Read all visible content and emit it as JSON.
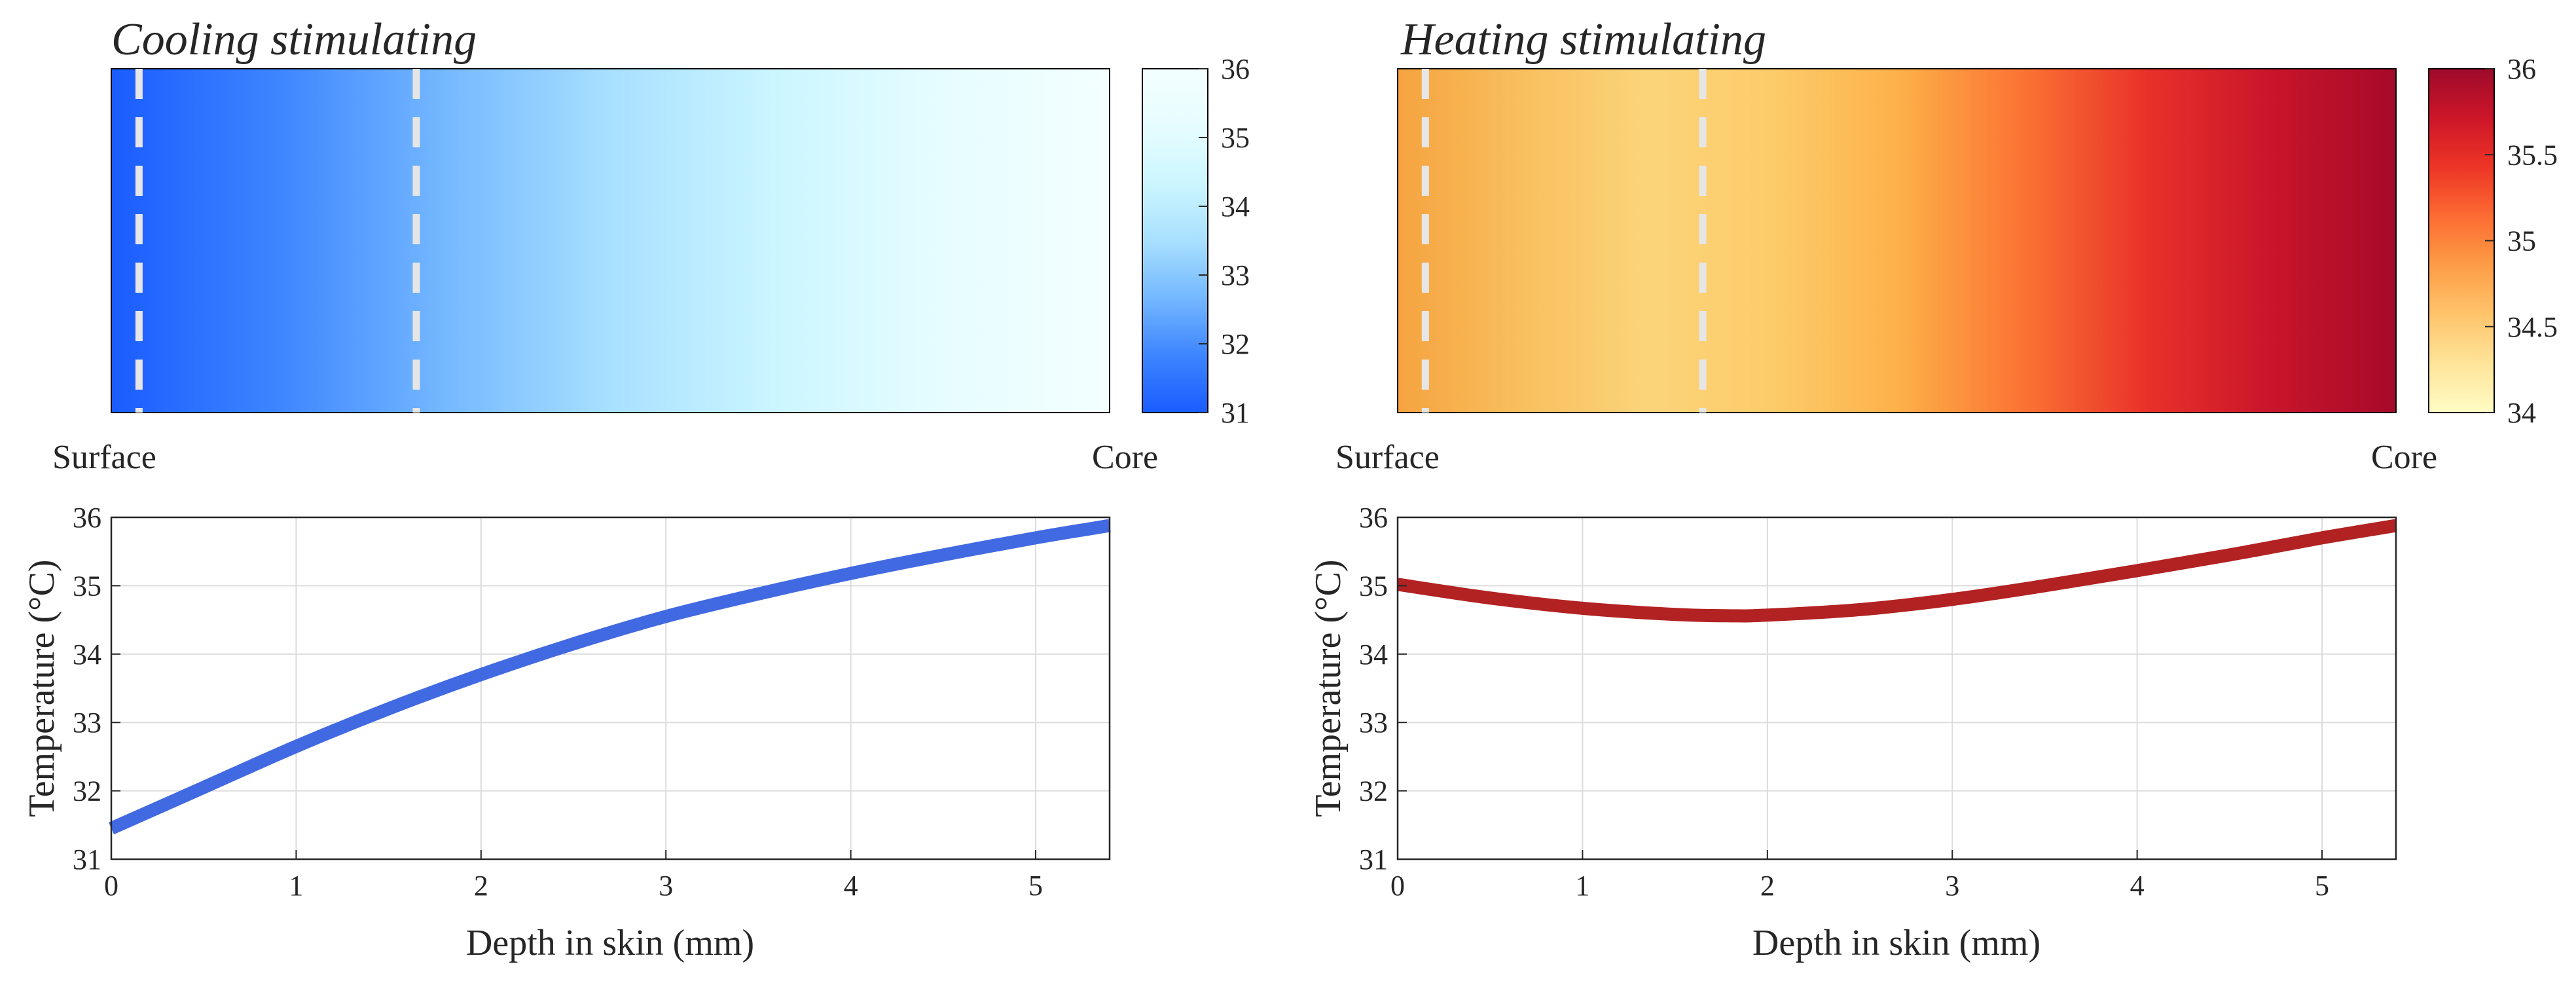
{
  "figure": {
    "panels": [
      {
        "id": "cooling",
        "title": "Cooling stimulating",
        "heatmap": {
          "start_label": "Surface",
          "end_label": "Core",
          "colormap": [
            "#1a5cff",
            "#3d85ff",
            "#74b8ff",
            "#a8e0ff",
            "#ccf6ff",
            "#e6fdff",
            "#f4ffff"
          ],
          "dashed_markers_depth_mm": [
            0.15,
            1.65
          ],
          "marker_color": "#e6e6e6"
        },
        "colorbar": {
          "min": 31,
          "max": 36,
          "ticks": [
            31,
            32,
            33,
            34,
            35,
            36
          ],
          "tick_labels": [
            "31",
            "32",
            "33",
            "34",
            "35",
            "36"
          ],
          "colormap": [
            "#1a5cff",
            "#3d85ff",
            "#74b8ff",
            "#a8e0ff",
            "#ccf6ff",
            "#e6fdff",
            "#f4ffff"
          ]
        },
        "line_color": "#4169e1"
      },
      {
        "id": "heating",
        "title": "Heating stimulating",
        "heatmap": {
          "start_label": "Surface",
          "end_label": "Core",
          "colormap": [
            "#f5a340",
            "#f9bf5e",
            "#fbd47a",
            "#fccc6a",
            "#fdb14a",
            "#fb7433",
            "#e9312a",
            "#c9152b",
            "#a60a2a"
          ],
          "dashed_markers_depth_mm": [
            0.15,
            1.65
          ],
          "marker_color": "#e6e6e6"
        },
        "colorbar": {
          "min": 34,
          "max": 36,
          "ticks": [
            34,
            34.5,
            35,
            35.5,
            36
          ],
          "tick_labels": [
            "34",
            "34.5",
            "35",
            "35.5",
            "36"
          ],
          "colormap": [
            "#fffcc4",
            "#fee49a",
            "#fec46b",
            "#fd9d46",
            "#fc6b32",
            "#ed3526",
            "#cc1629",
            "#9e0a2a"
          ]
        },
        "line_color": "#b22222"
      }
    ]
  },
  "chart_data": [
    {
      "type": "line",
      "panel": "cooling",
      "title": "Cooling stimulating",
      "xlabel": "Depth in skin (mm)",
      "ylabel": "Temperature (°C)",
      "xlim": [
        0,
        5.4
      ],
      "ylim": [
        31,
        36
      ],
      "xticks": [
        0,
        1,
        2,
        3,
        4,
        5
      ],
      "xtick_labels": [
        "0",
        "1",
        "2",
        "3",
        "4",
        "5"
      ],
      "yticks": [
        31,
        32,
        33,
        34,
        35,
        36
      ],
      "ytick_labels": [
        "31",
        "32",
        "33",
        "34",
        "35",
        "36"
      ],
      "grid": true,
      "series": [
        {
          "name": "Cooling",
          "x": [
            0,
            0.5,
            1,
            1.5,
            2,
            2.5,
            3,
            3.5,
            4,
            4.5,
            5,
            5.4
          ],
          "y": [
            31.45,
            32.05,
            32.65,
            33.2,
            33.7,
            34.15,
            34.55,
            34.88,
            35.18,
            35.45,
            35.7,
            35.88
          ]
        }
      ]
    },
    {
      "type": "line",
      "panel": "heating",
      "title": "Heating stimulating",
      "xlabel": "Depth in skin (mm)",
      "ylabel": "Temperature (°C)",
      "xlim": [
        0,
        5.4
      ],
      "ylim": [
        31,
        36
      ],
      "xticks": [
        0,
        1,
        2,
        3,
        4,
        5
      ],
      "xtick_labels": [
        "0",
        "1",
        "2",
        "3",
        "4",
        "5"
      ],
      "yticks": [
        31,
        32,
        33,
        34,
        35,
        36
      ],
      "ytick_labels": [
        "31",
        "32",
        "33",
        "34",
        "35",
        "36"
      ],
      "grid": true,
      "series": [
        {
          "name": "Heating",
          "x": [
            0,
            0.5,
            1,
            1.5,
            1.8,
            2,
            2.5,
            3,
            3.5,
            4,
            4.5,
            5,
            5.4
          ],
          "y": [
            35.02,
            34.82,
            34.67,
            34.58,
            34.56,
            34.57,
            34.65,
            34.8,
            35.0,
            35.22,
            35.45,
            35.7,
            35.88
          ]
        }
      ]
    }
  ]
}
